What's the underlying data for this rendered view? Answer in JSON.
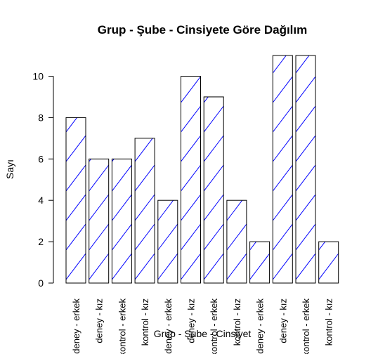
{
  "chart_data": {
    "type": "bar",
    "title": "Grup - Şube - Cinsiyete Göre Dağılım",
    "xlabel": "Grup - Şube - Cinsiyet",
    "ylabel": "Sayı",
    "categories": [
      "deney - erkek",
      "deney - kız",
      "kontrol - erkek",
      "kontrol - kız",
      "deney - erkek",
      "deney - kız",
      "kontrol - erkek",
      "kontrol - kız",
      "deney - erkek",
      "deney - kız",
      "kontrol - erkek",
      "kontrol - kız"
    ],
    "values": [
      8,
      6,
      6,
      7,
      4,
      10,
      9,
      4,
      2,
      11,
      11,
      2
    ],
    "ylim": [
      0,
      11
    ],
    "yticks": [
      0,
      2,
      4,
      6,
      8,
      10
    ],
    "grid": false,
    "legend": "none",
    "colors": {
      "bar_fill": "#ffffff",
      "bar_border": "#000000",
      "hatch": "#0000ff"
    }
  }
}
